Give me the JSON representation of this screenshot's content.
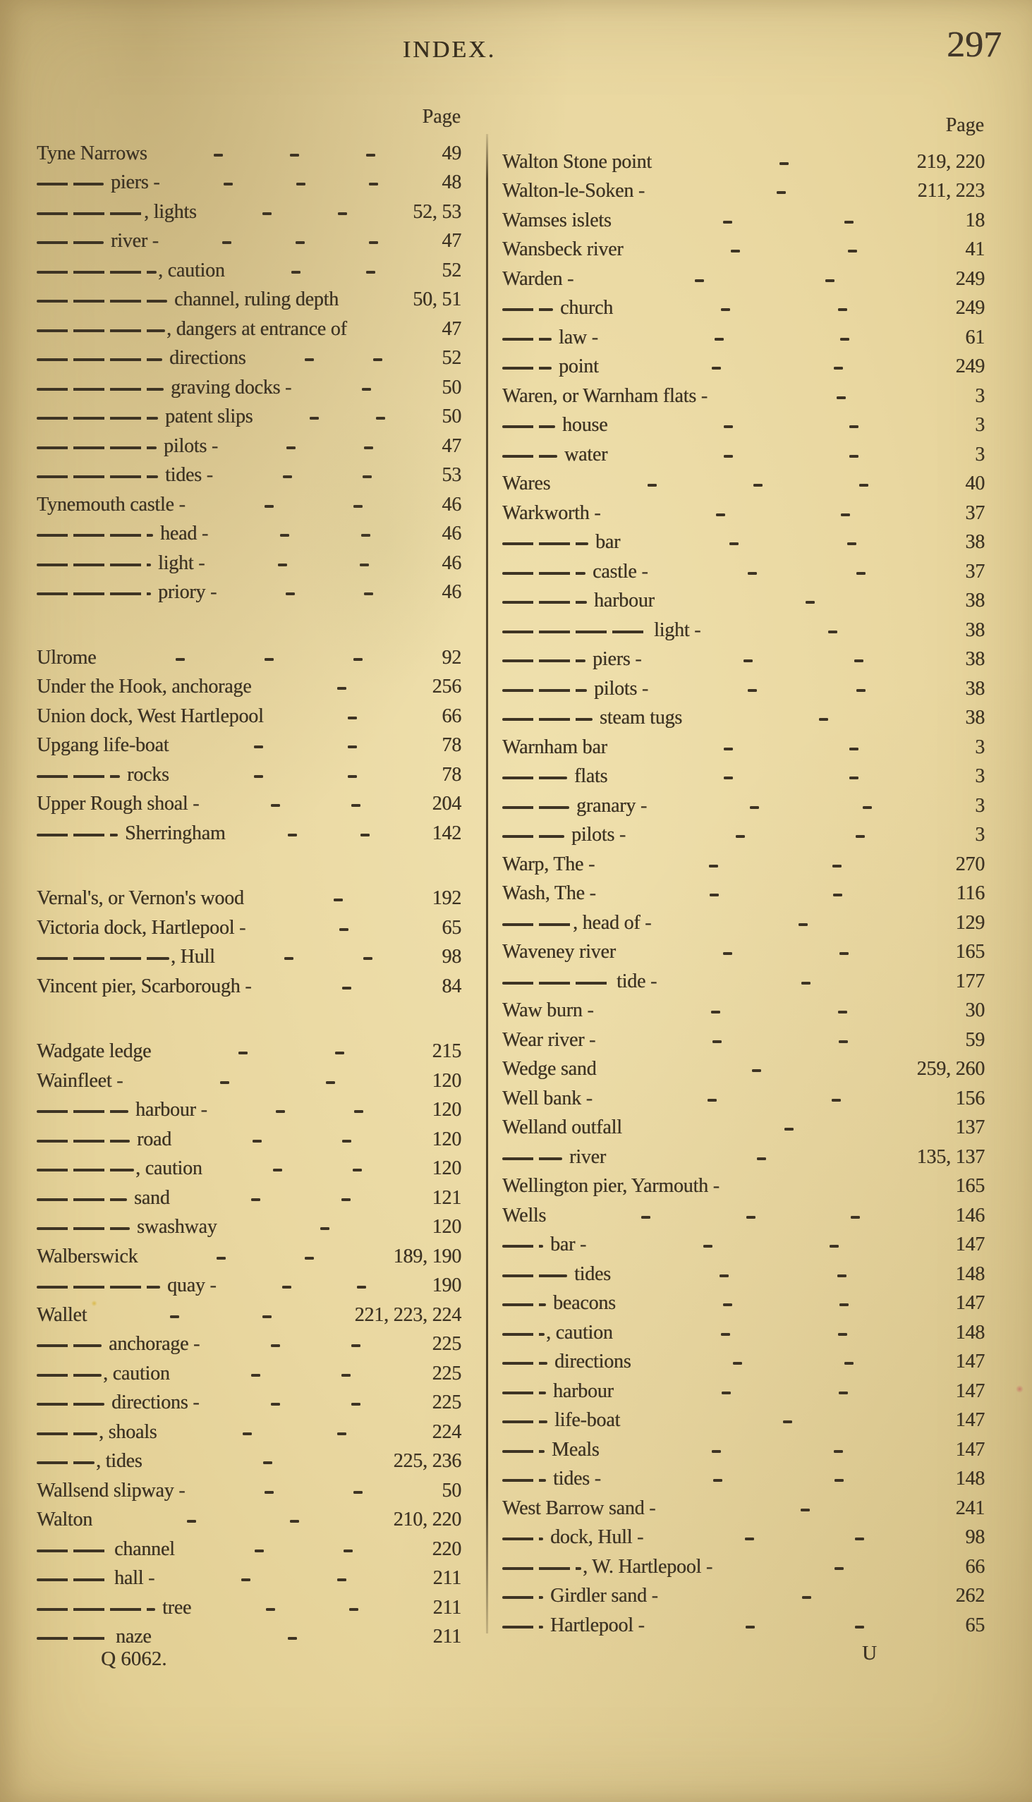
{
  "header": {
    "title": "INDEX.",
    "page_number": "297"
  },
  "colors": {
    "paper": "#e9d7a0",
    "ink": "#3e3424"
  },
  "columns": [
    {
      "page_label": "Page",
      "entries": [
        {
          "d": 0,
          "t": "Tyne Narrows",
          "l": 3,
          "p": "49"
        },
        {
          "d": 95,
          "t": "piers -",
          "l": 3,
          "p": "48"
        },
        {
          "d": 150,
          "t": ", lights",
          "l": 2,
          "p": "52, 53"
        },
        {
          "d": 95,
          "t": "river -",
          "l": 3,
          "p": "47"
        },
        {
          "d": 170,
          "t": ", caution",
          "l": 2,
          "p": "52"
        },
        {
          "d": 185,
          "t": "channel, ruling depth",
          "l": 0,
          "p": "50, 51"
        },
        {
          "d": 182,
          "t": ", dangers at entrance of",
          "l": 0,
          "p": "47"
        },
        {
          "d": 178,
          "t": "directions",
          "l": 2,
          "p": "52"
        },
        {
          "d": 180,
          "t": "graving docks -",
          "l": 1,
          "p": "50"
        },
        {
          "d": 172,
          "t": "patent slips",
          "l": 2,
          "p": "50"
        },
        {
          "d": 170,
          "t": "pilots -",
          "l": 2,
          "p": "47"
        },
        {
          "d": 172,
          "t": "tides -",
          "l": 2,
          "p": "53"
        },
        {
          "d": 0,
          "t": "Tynemouth castle -",
          "l": 2,
          "p": "46"
        },
        {
          "d": 165,
          "t": "head -",
          "l": 2,
          "p": "46"
        },
        {
          "d": 162,
          "t": "light -",
          "l": 2,
          "p": "46"
        },
        {
          "d": 162,
          "t": "priory -",
          "l": 2,
          "p": "46"
        },
        {
          "gap": true
        },
        {
          "d": 0,
          "t": "Ulrome",
          "l": 3,
          "p": "92"
        },
        {
          "d": 0,
          "t": "Under the Hook, anchorage",
          "l": 1,
          "p": "256"
        },
        {
          "d": 0,
          "t": "Union dock, West Hartlepool",
          "l": 1,
          "p": "66"
        },
        {
          "d": 0,
          "t": "Upgang life-boat",
          "l": 2,
          "p": "78"
        },
        {
          "d": 118,
          "t": "rocks",
          "l": 2,
          "p": "78"
        },
        {
          "d": 0,
          "t": "Upper Rough shoal -",
          "l": 2,
          "p": "204"
        },
        {
          "d": 115,
          "t": "Sherringham",
          "l": 2,
          "p": "142"
        },
        {
          "gap": true
        },
        {
          "d": 0,
          "t": "Vernal's, or Vernon's wood",
          "l": 1,
          "p": "192"
        },
        {
          "d": 0,
          "t": "Victoria dock, Hartlepool -",
          "l": 1,
          "p": "65"
        },
        {
          "d": 188,
          "t": ", Hull",
          "l": 2,
          "p": "98"
        },
        {
          "d": 0,
          "t": "Vincent pier, Scarborough -",
          "l": 1,
          "p": "84"
        },
        {
          "gap": true
        },
        {
          "d": 0,
          "t": "Wadgate ledge",
          "l": 2,
          "p": "215"
        },
        {
          "d": 0,
          "t": "Wainfleet -",
          "l": 2,
          "p": "120"
        },
        {
          "d": 130,
          "t": "harbour -",
          "l": 2,
          "p": "120"
        },
        {
          "d": 132,
          "t": "road",
          "l": 2,
          "p": "120"
        },
        {
          "d": 138,
          "t": ", caution",
          "l": 2,
          "p": "120"
        },
        {
          "d": 128,
          "t": "sand",
          "l": 2,
          "p": "121"
        },
        {
          "d": 132,
          "t": "swashway",
          "l": 1,
          "p": "120"
        },
        {
          "d": 0,
          "t": "Walberswick",
          "l": 2,
          "p": "189, 190"
        },
        {
          "d": 175,
          "t": "quay -",
          "l": 2,
          "p": "190"
        },
        {
          "d": 0,
          "t": "Wallet",
          "l": 2,
          "p": "221, 223, 224"
        },
        {
          "d": 92,
          "t": "anchorage -",
          "l": 2,
          "p": "225"
        },
        {
          "d": 92,
          "t": ", caution",
          "l": 2,
          "p": "225"
        },
        {
          "d": 96,
          "t": "directions -",
          "l": 2,
          "p": "225"
        },
        {
          "d": 86,
          "t": ", shoals",
          "l": 2,
          "p": "224"
        },
        {
          "d": 82,
          "t": ", tides",
          "l": 1,
          "p": "225, 236"
        },
        {
          "d": 0,
          "t": "Wallsend slipway -",
          "l": 2,
          "p": "50"
        },
        {
          "d": 0,
          "t": "Walton",
          "l": 2,
          "p": "210, 220"
        },
        {
          "d": 100,
          "t": "channel",
          "l": 2,
          "p": "220"
        },
        {
          "d": 100,
          "t": "hall -",
          "l": 2,
          "p": "211"
        },
        {
          "d": 168,
          "t": "tree",
          "l": 2,
          "p": "211"
        },
        {
          "d": 102,
          "t": "naze",
          "l": 1,
          "p": "211"
        }
      ]
    },
    {
      "page_label": "Page",
      "entries": [
        {
          "d": 0,
          "t": "Walton Stone point",
          "l": 1,
          "p": "219, 220"
        },
        {
          "d": 0,
          "t": "Walton-le-Soken -",
          "l": 1,
          "p": "211, 223"
        },
        {
          "d": 0,
          "t": "Wamses islets",
          "l": 2,
          "p": "18"
        },
        {
          "d": 0,
          "t": "Wansbeck river",
          "l": 2,
          "p": "41"
        },
        {
          "d": 0,
          "t": "Warden -",
          "l": 2,
          "p": "249"
        },
        {
          "d": 72,
          "t": "church",
          "l": 2,
          "p": "249"
        },
        {
          "d": 70,
          "t": "law -",
          "l": 2,
          "p": "61"
        },
        {
          "d": 70,
          "t": "point",
          "l": 2,
          "p": "249"
        },
        {
          "d": 0,
          "t": "Waren, or Warnham flats -",
          "l": 1,
          "p": "3"
        },
        {
          "d": 75,
          "t": "house",
          "l": 2,
          "p": "3"
        },
        {
          "d": 78,
          "t": "water",
          "l": 2,
          "p": "3"
        },
        {
          "d": 0,
          "t": "Wares",
          "l": 3,
          "p": "40"
        },
        {
          "d": 0,
          "t": "Warkworth -",
          "l": 2,
          "p": "37"
        },
        {
          "d": 122,
          "t": "bar",
          "l": 2,
          "p": "38"
        },
        {
          "d": 118,
          "t": "castle -",
          "l": 2,
          "p": "37"
        },
        {
          "d": 120,
          "t": "harbour",
          "l": 1,
          "p": "38"
        },
        {
          "d": 205,
          "t": "light -",
          "l": 1,
          "p": "38"
        },
        {
          "d": 118,
          "t": "piers -",
          "l": 2,
          "p": "38"
        },
        {
          "d": 120,
          "t": "pilots -",
          "l": 2,
          "p": "38"
        },
        {
          "d": 128,
          "t": "steam tugs",
          "l": 1,
          "p": "38"
        },
        {
          "d": 0,
          "t": "Warnham bar",
          "l": 2,
          "p": "3"
        },
        {
          "d": 92,
          "t": "flats",
          "l": 2,
          "p": "3"
        },
        {
          "d": 95,
          "t": "granary -",
          "l": 2,
          "p": "3"
        },
        {
          "d": 88,
          "t": "pilots -",
          "l": 2,
          "p": "3"
        },
        {
          "d": 0,
          "t": "Warp, The -",
          "l": 2,
          "p": "270"
        },
        {
          "d": 0,
          "t": "Wash, The -",
          "l": 2,
          "p": "116"
        },
        {
          "d": 98,
          "t": ", head of -",
          "l": 1,
          "p": "129"
        },
        {
          "d": 0,
          "t": "Waveney river",
          "l": 2,
          "p": "165"
        },
        {
          "d": 152,
          "t": "tide -",
          "l": 1,
          "p": "177"
        },
        {
          "d": 0,
          "t": "Waw burn -",
          "l": 2,
          "p": "30"
        },
        {
          "d": 0,
          "t": "Wear river -",
          "l": 2,
          "p": "59"
        },
        {
          "d": 0,
          "t": "Wedge sand",
          "l": 1,
          "p": "259, 260"
        },
        {
          "d": 0,
          "t": "Well bank -",
          "l": 2,
          "p": "156"
        },
        {
          "d": 0,
          "t": "Welland outfall",
          "l": 1,
          "p": "137"
        },
        {
          "d": 85,
          "t": "river",
          "l": 1,
          "p": "135, 137"
        },
        {
          "d": 0,
          "t": "Wellington pier, Yarmouth -",
          "l": 0,
          "p": "165"
        },
        {
          "d": 0,
          "t": "Wells",
          "l": 3,
          "p": "146"
        },
        {
          "d": 58,
          "t": "bar -",
          "l": 2,
          "p": "147"
        },
        {
          "d": 92,
          "t": "tides",
          "l": 2,
          "p": "148"
        },
        {
          "d": 62,
          "t": "beacons",
          "l": 2,
          "p": "147"
        },
        {
          "d": 60,
          "t": ", caution",
          "l": 2,
          "p": "148"
        },
        {
          "d": 64,
          "t": "directions",
          "l": 2,
          "p": "147"
        },
        {
          "d": 62,
          "t": "harbour",
          "l": 2,
          "p": "147"
        },
        {
          "d": 64,
          "t": "life-boat",
          "l": 1,
          "p": "147"
        },
        {
          "d": 60,
          "t": "Meals",
          "l": 2,
          "p": "147"
        },
        {
          "d": 62,
          "t": "tides -",
          "l": 2,
          "p": "148"
        },
        {
          "d": 0,
          "t": "West Barrow sand -",
          "l": 1,
          "p": "241"
        },
        {
          "d": 58,
          "t": "dock, Hull -",
          "l": 2,
          "p": "98"
        },
        {
          "d": 112,
          "t": ", W. Hartlepool -",
          "l": 1,
          "p": "66"
        },
        {
          "d": 58,
          "t": "Girdler sand -",
          "l": 1,
          "p": "262"
        },
        {
          "d": 58,
          "t": "Hartlepool -",
          "l": 2,
          "p": "65"
        }
      ]
    }
  ],
  "footer": {
    "signature": "Q 6062.",
    "catchword": "U"
  }
}
